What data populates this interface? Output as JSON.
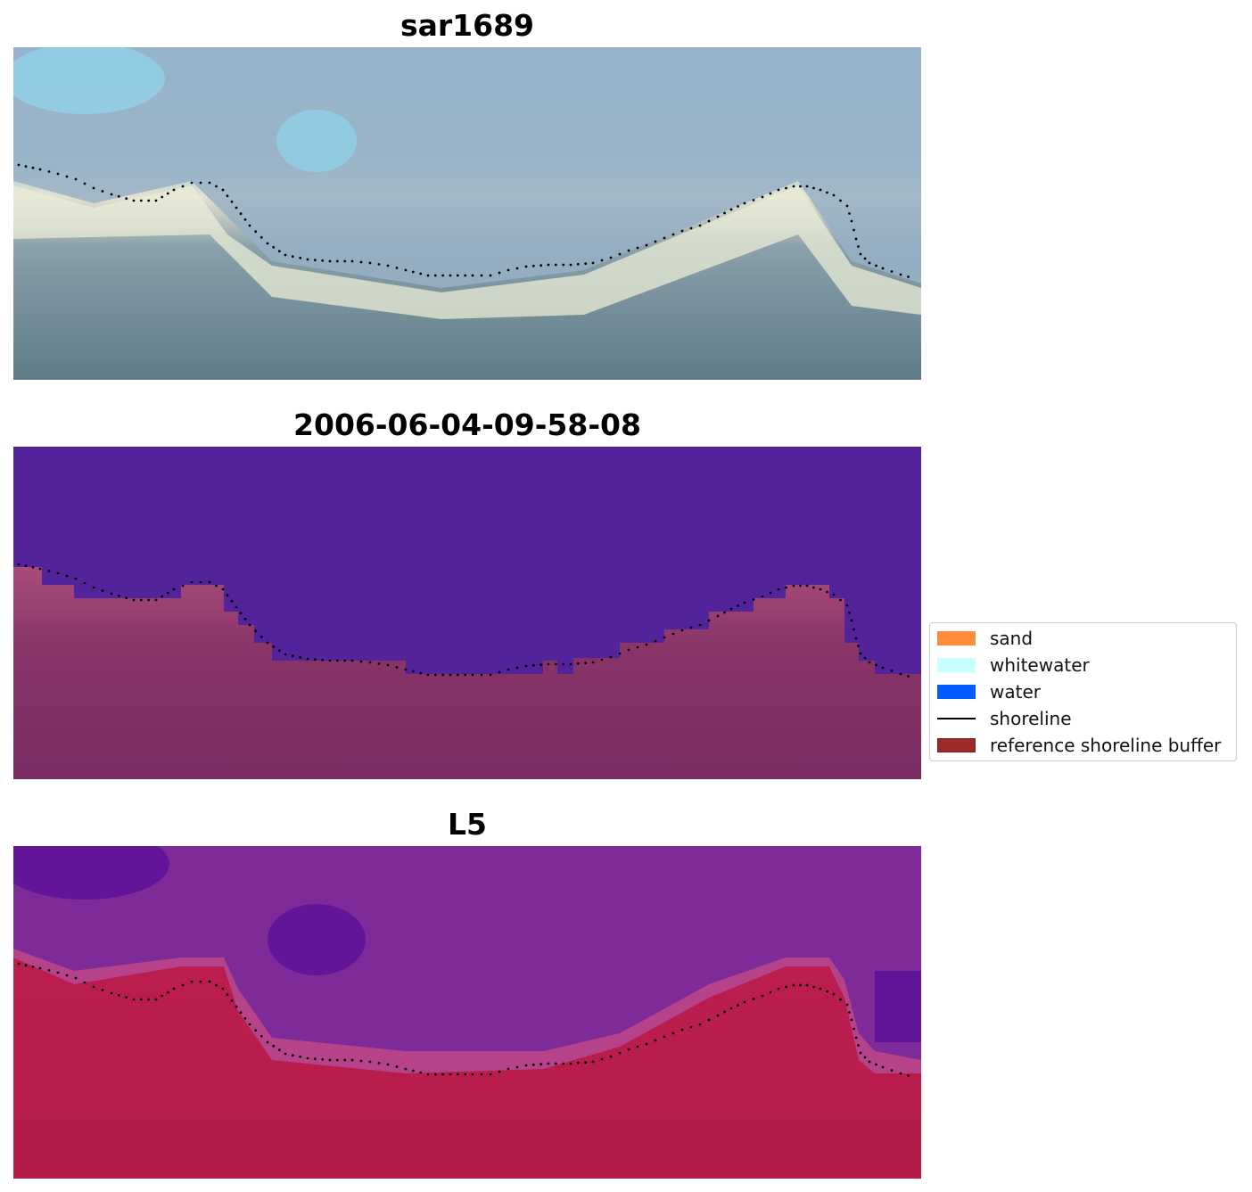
{
  "panels": [
    {
      "title": "sar1689",
      "kind": "rgb"
    },
    {
      "title": "2006-06-04-09-58-08",
      "kind": "classification"
    },
    {
      "title": "L5",
      "kind": "mndwi"
    }
  ],
  "colors": {
    "rgb_sky": "#8fb4cf",
    "rgb_foam": "#e9ecd6",
    "rgb_sea": "#5f7a88",
    "class_water": "#52239a",
    "class_land_light": "#b0537f",
    "class_land_dark": "#7a2c62",
    "mndwi_top": "#6a1aa0",
    "mndwi_mid": "#b6438a",
    "mndwi_bottom": "#bd1e50",
    "shoreline": "#000000"
  },
  "legend": {
    "items": [
      {
        "label": "sand",
        "color": "#ff8c3a",
        "kind": "patch"
      },
      {
        "label": "whitewater",
        "color": "#c8ffff",
        "kind": "patch"
      },
      {
        "label": "water",
        "color": "#005cff",
        "kind": "patch"
      },
      {
        "label": "shoreline",
        "color": "#000000",
        "kind": "line"
      },
      {
        "label": "reference shoreline buffer",
        "color": "#9b2a2a",
        "kind": "patch"
      }
    ]
  }
}
